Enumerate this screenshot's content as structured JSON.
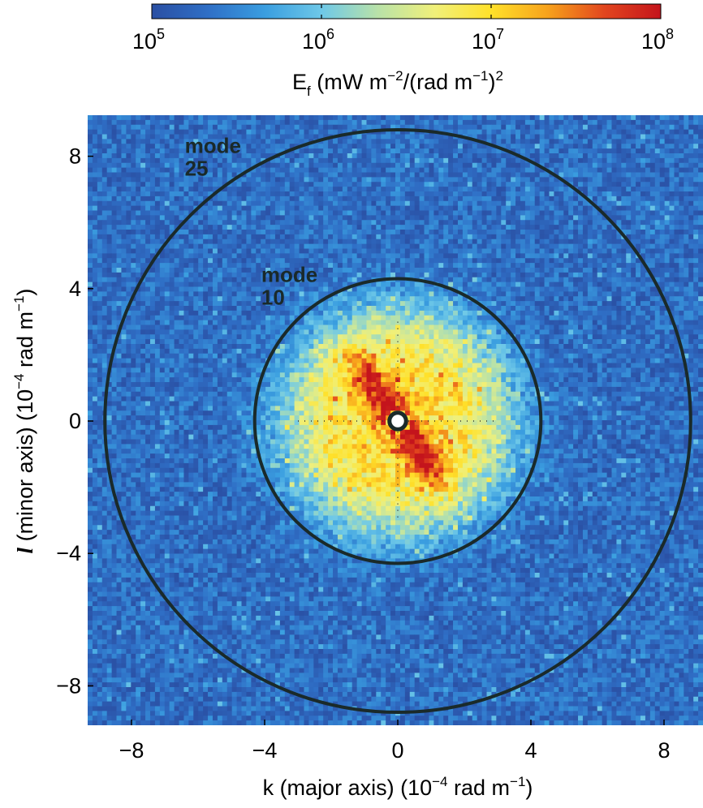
{
  "chart_data": {
    "type": "heatmap",
    "colorbar": {
      "scale": "log",
      "range": [
        100000,
        100000000
      ],
      "ticks": [
        {
          "base": "10",
          "exp": "5",
          "value": 100000
        },
        {
          "base": "10",
          "exp": "6",
          "value": 1000000
        },
        {
          "base": "10",
          "exp": "7",
          "value": 10000000
        },
        {
          "base": "10",
          "exp": "8",
          "value": 100000000
        }
      ],
      "label": {
        "symbol": "E",
        "sub": "f",
        "units_a": " (mW m",
        "exp_a": "−2",
        "units_b": "/(rad m",
        "exp_b": "−1",
        "units_c": ")",
        "exp_c": "2"
      },
      "colormap": [
        "#2a4fa3",
        "#2f6fc6",
        "#3a9ee0",
        "#6ec8e8",
        "#b9e2a8",
        "#f0f07a",
        "#ffe12a",
        "#f7a21c",
        "#e2461e",
        "#c4141c"
      ]
    },
    "x_axis": {
      "label": {
        "text": "k (major axis)  (10",
        "exp": "−4",
        "tail": " rad m",
        "exp2": "−1",
        "close": ")"
      },
      "range": [
        -9,
        9
      ],
      "ticks": [
        {
          "value": -8,
          "label": "−8"
        },
        {
          "value": -4,
          "label": "−4"
        },
        {
          "value": 0,
          "label": "0"
        },
        {
          "value": 4,
          "label": "4"
        },
        {
          "value": 8,
          "label": "8"
        }
      ]
    },
    "y_axis": {
      "label": {
        "symbol": "l",
        "text": " (minor axis)  (10",
        "exp": "−4",
        "tail": " rad m",
        "exp2": "−1",
        "close": ")"
      },
      "range": [
        -9.2,
        9.2
      ],
      "ticks": [
        {
          "value": -8,
          "label": "−8"
        },
        {
          "value": -4,
          "label": "−4"
        },
        {
          "value": 0,
          "label": "0"
        },
        {
          "value": 4,
          "label": "4"
        },
        {
          "value": 8,
          "label": "8"
        }
      ]
    },
    "circles": [
      {
        "radius": 8.8,
        "label_line1": "mode",
        "label_line2": "25",
        "label_x": -6.4,
        "label_y": 8.1
      },
      {
        "radius": 4.3,
        "label_line1": "mode",
        "label_line2": "10",
        "label_x": -4.1,
        "label_y": 4.2
      },
      {
        "radius": 0.25,
        "label_line1": "",
        "label_line2": "",
        "fill": "#ffffff"
      }
    ],
    "field": {
      "background_level": 5.3,
      "core_peak_level": 7.0,
      "core_radius": 3.6,
      "ridge_peak_level": 7.8,
      "ridge_angle_deg": -55,
      "ridge_half_length": 2.4,
      "ridge_half_width": 0.45,
      "grid_cells": 128
    }
  }
}
